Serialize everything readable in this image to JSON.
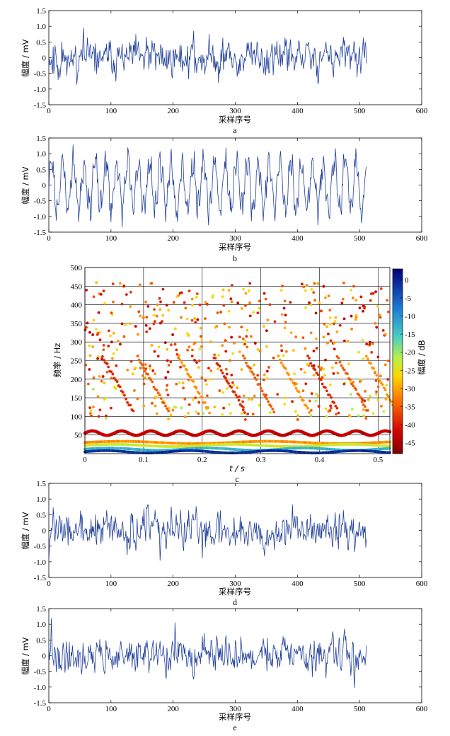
{
  "chart_data": [
    {
      "type": "line",
      "panel": "a",
      "xlabel": "采样序号",
      "ylabel": "幅度 / mV",
      "xlim": [
        0,
        600
      ],
      "ylim": [
        -1.5,
        1.5
      ],
      "xticks": [
        "0",
        "100",
        "200",
        "300",
        "400",
        "500",
        "600"
      ],
      "yticks": [
        "1.5",
        "1.0",
        "0.5",
        "0",
        "-0.5",
        "-1.0",
        "-1.5"
      ],
      "samples": 512,
      "x_range": [
        0,
        511
      ],
      "y_range_observed": [
        -1.4,
        1.3
      ],
      "color": "#1f3f9a"
    },
    {
      "type": "line",
      "panel": "b",
      "xlabel": "采样序号",
      "ylabel": "幅度 / mV",
      "xlim": [
        0,
        600
      ],
      "ylim": [
        -1.5,
        1.5
      ],
      "xticks": [
        "0",
        "100",
        "200",
        "300",
        "400",
        "500",
        "600"
      ],
      "yticks": [
        "1.5",
        "1.0",
        "0.5",
        "0",
        "-0.5",
        "-1.0",
        "-1.5"
      ],
      "samples": 512,
      "x_range": [
        0,
        511
      ],
      "y_range_observed": [
        -1.45,
        1.45
      ],
      "color": "#1f3f9a"
    },
    {
      "type": "scatter",
      "panel": "c",
      "xlabel": "t / s",
      "ylabel": "频率 / Hz",
      "colorbar_label": "幅度 / dB",
      "xlim": [
        0,
        0.52
      ],
      "ylim": [
        0,
        500
      ],
      "xticks": [
        "0",
        "0.1",
        "0.2",
        "0.3",
        "0.4",
        "0.5"
      ],
      "yticks": [
        "500",
        "450",
        "400",
        "350",
        "300",
        "250",
        "200",
        "150",
        "100",
        "50"
      ],
      "colorbar_ticks": [
        "-45",
        "-40",
        "-35",
        "-30",
        "-25",
        "-20",
        "-15",
        "-10",
        "-5",
        "0"
      ],
      "colorbar_range": [
        -48,
        3
      ],
      "grid": true,
      "tracks": [
        {
          "name": "",
          "approx_freq": 55,
          "approx_db": -2
        },
        {
          "name": "",
          "approx_freq": 30,
          "approx_db": -14
        },
        {
          "name": "",
          "approx_freq": 22,
          "approx_db": -22
        },
        {
          "name": "",
          "approx_freq": 12,
          "approx_db": -32
        },
        {
          "name": "",
          "approx_freq": 5,
          "approx_db": -44
        }
      ]
    },
    {
      "type": "line",
      "panel": "d",
      "xlabel": "采样序号",
      "ylabel": "幅度 / mV",
      "xlim": [
        0,
        600
      ],
      "ylim": [
        -1.5,
        1.5
      ],
      "xticks": [
        "0",
        "100",
        "200",
        "300",
        "400",
        "500",
        "600"
      ],
      "yticks": [
        "1.5",
        "1.0",
        "0.5",
        "0",
        "-0.5",
        "-1.0",
        "-1.5"
      ],
      "samples": 512,
      "x_range": [
        0,
        511
      ],
      "y_range_observed": [
        -1.4,
        1.3
      ],
      "color": "#1f3f9a"
    },
    {
      "type": "line",
      "panel": "e",
      "xlabel": "采样序号",
      "ylabel": "幅度 / mV",
      "xlim": [
        0,
        600
      ],
      "ylim": [
        -1.5,
        1.5
      ],
      "xticks": [
        "0",
        "100",
        "200",
        "300",
        "400",
        "500",
        "600"
      ],
      "yticks": [
        "1.5",
        "1.0",
        "0.5",
        "0",
        "-0.5",
        "-1.0",
        "-1.5"
      ],
      "samples": 512,
      "x_range": [
        0,
        511
      ],
      "y_range_observed": [
        -1.3,
        1.3
      ],
      "color": "#1f3f9a"
    }
  ]
}
